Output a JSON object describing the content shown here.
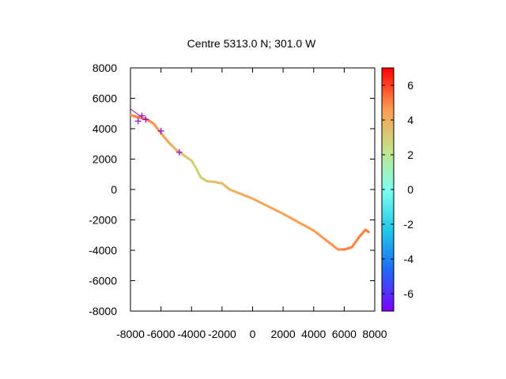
{
  "chart_data": {
    "type": "scatter",
    "title": "Centre 5313.0 N; 301.0  W",
    "xlabel": "",
    "ylabel": "",
    "xlim": [
      -8000,
      8000
    ],
    "ylim": [
      -8000,
      8000
    ],
    "x_ticks": [
      -8000,
      -6000,
      -4000,
      -2000,
      0,
      2000,
      4000,
      6000,
      8000
    ],
    "x_tick_labels": [
      "-8000",
      "-6000",
      "-4000",
      "-2000",
      "0",
      "2000",
      "4000",
      "6000",
      "8000"
    ],
    "y_ticks": [
      8000,
      6000,
      4000,
      2000,
      0,
      -2000,
      -4000,
      -6000,
      -8000
    ],
    "y_tick_labels": [
      "8000",
      "6000",
      "4000",
      "2000",
      "0",
      "-2000",
      "-4000",
      "-6000",
      "-8000"
    ],
    "grid": false,
    "colorbar": {
      "range": [
        -7,
        7
      ],
      "ticks": [
        6,
        4,
        2,
        0,
        -2,
        -4,
        -6
      ],
      "tick_labels": [
        "6",
        "4",
        "2",
        "0",
        "-2",
        "-4",
        "-6"
      ],
      "colormap": "rainbow"
    },
    "series": [
      {
        "kind": "track",
        "points": [
          {
            "x": -8000,
            "y": 4900,
            "c": 4.8
          },
          {
            "x": -7500,
            "y": 4750,
            "c": 5.0
          },
          {
            "x": -7000,
            "y": 4650,
            "c": 5.2
          },
          {
            "x": -6500,
            "y": 4350,
            "c": 4.8
          },
          {
            "x": -6000,
            "y": 3700,
            "c": 4.6
          },
          {
            "x": -5500,
            "y": 3100,
            "c": 4.2
          },
          {
            "x": -5000,
            "y": 2600,
            "c": 3.8
          },
          {
            "x": -4500,
            "y": 2250,
            "c": 3.4
          },
          {
            "x": -4000,
            "y": 1900,
            "c": 3.0
          },
          {
            "x": -3700,
            "y": 1400,
            "c": 2.8
          },
          {
            "x": -3400,
            "y": 800,
            "c": 3.0
          },
          {
            "x": -3000,
            "y": 550,
            "c": 3.2
          },
          {
            "x": -2500,
            "y": 500,
            "c": 3.4
          },
          {
            "x": -2000,
            "y": 400,
            "c": 3.6
          },
          {
            "x": -1500,
            "y": 0,
            "c": 3.8
          },
          {
            "x": 0,
            "y": -600,
            "c": 4.2
          },
          {
            "x": 2000,
            "y": -1600,
            "c": 4.4
          },
          {
            "x": 4000,
            "y": -2700,
            "c": 4.6
          },
          {
            "x": 5600,
            "y": -3950,
            "c": 4.8
          },
          {
            "x": 6000,
            "y": -3950,
            "c": 5.0
          },
          {
            "x": 6500,
            "y": -3800,
            "c": 5.0
          },
          {
            "x": 7000,
            "y": -3100,
            "c": 5.0
          },
          {
            "x": 7400,
            "y": -2650,
            "c": 5.0
          },
          {
            "x": 7600,
            "y": -2800,
            "c": 5.0
          }
        ]
      },
      {
        "kind": "markers",
        "color": "#9400d3",
        "points": [
          {
            "x": -7500,
            "y": 4500
          },
          {
            "x": -7250,
            "y": 4850
          },
          {
            "x": -7000,
            "y": 4600
          },
          {
            "x": -6000,
            "y": 3850
          },
          {
            "x": -4800,
            "y": 2450
          }
        ]
      }
    ],
    "annotation_line": {
      "color": "#9400d3",
      "points": [
        {
          "x": -8000,
          "y": 5300
        },
        {
          "x": -7300,
          "y": 4800
        }
      ]
    }
  }
}
